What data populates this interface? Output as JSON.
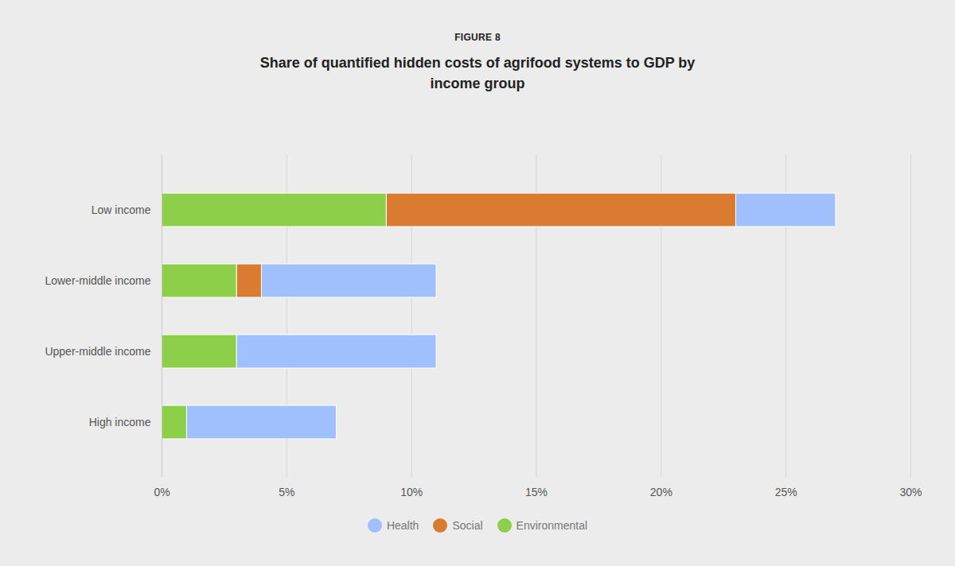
{
  "chart_data": {
    "type": "bar",
    "orientation": "horizontal",
    "stacked": true,
    "subtitle": "FIGURE 8",
    "title": "Share of quantified hidden costs of agrifood systems to GDP by income group",
    "categories": [
      "Low income",
      "Lower-middle income",
      "Upper-middle income",
      "High income"
    ],
    "series": [
      {
        "name": "Health",
        "color": "#9fbffd",
        "values": [
          4,
          7,
          8,
          6
        ]
      },
      {
        "name": "Social",
        "color": "#d97b30",
        "values": [
          14,
          1,
          0,
          0
        ]
      },
      {
        "name": "Environmental",
        "color": "#8ecf4a",
        "values": [
          9,
          3,
          3,
          1
        ]
      }
    ],
    "xlim": [
      0,
      30
    ],
    "xticks": [
      {
        "value": 0,
        "label": "0%"
      },
      {
        "value": 5,
        "label": "5%"
      },
      {
        "value": 10,
        "label": "10%"
      },
      {
        "value": 15,
        "label": "15%"
      },
      {
        "value": 20,
        "label": "20%"
      },
      {
        "value": 25,
        "label": "25%"
      },
      {
        "value": 30,
        "label": "30%"
      }
    ],
    "grid": true,
    "legend": "bottom"
  }
}
